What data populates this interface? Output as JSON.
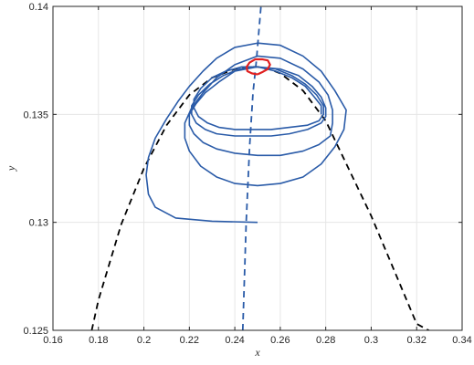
{
  "chart_data": {
    "type": "line",
    "title": "",
    "xlabel": "x",
    "ylabel": "y",
    "xlim": [
      0.16,
      0.34
    ],
    "ylim": [
      0.125,
      0.14
    ],
    "xticks": [
      0.16,
      0.18,
      0.2,
      0.22,
      0.24,
      0.26,
      0.28,
      0.3,
      0.32,
      0.34
    ],
    "yticks": [
      0.125,
      0.13,
      0.135,
      0.14
    ],
    "xtick_labels": [
      "0.16",
      "0.18",
      "0.2",
      "0.22",
      "0.24",
      "0.26",
      "0.28",
      "0.3",
      "0.32",
      "0.34"
    ],
    "ytick_labels": [
      "0.125",
      "0.13",
      "0.135",
      "0.14"
    ],
    "grid": true,
    "colors": {
      "trajectory": "#2a5ba8",
      "nullcline_y": "#2a5ba8",
      "nullcline_x": "#000000",
      "limit_cycle": "#e02020",
      "grid": "#e6e6e6",
      "axes": "#262626"
    },
    "series": [
      {
        "style": "dashed-black",
        "x": [
          0.176,
          0.18,
          0.19,
          0.2,
          0.21,
          0.22,
          0.23,
          0.24,
          0.245,
          0.25,
          0.255,
          0.26,
          0.27,
          0.28,
          0.29,
          0.3,
          0.31,
          0.32,
          0.334
        ],
        "y": [
          0.1245,
          0.1264,
          0.1299,
          0.1325,
          0.1345,
          0.1359,
          0.1367,
          0.1371,
          0.1372,
          0.1372,
          0.1371,
          0.1369,
          0.1361,
          0.1347,
          0.1325,
          0.1303,
          0.1278,
          0.1253,
          0.1245
        ]
      },
      {
        "style": "dashed-blue",
        "x": [
          0.2435,
          0.245,
          0.2465,
          0.248,
          0.2495,
          0.2515
        ],
        "y": [
          0.125,
          0.13,
          0.1335,
          0.136,
          0.1375,
          0.14
        ]
      },
      {
        "style": "solid-blue",
        "x": [
          0.25,
          0.23,
          0.214,
          0.205,
          0.202,
          0.201,
          0.202,
          0.205,
          0.21,
          0.215,
          0.22,
          0.226,
          0.232,
          0.24,
          0.25,
          0.26,
          0.27,
          0.278,
          0.284,
          0.289,
          0.288,
          0.284,
          0.278,
          0.27,
          0.26,
          0.25,
          0.24,
          0.232,
          0.225,
          0.22,
          0.218,
          0.218,
          0.221,
          0.226,
          0.232,
          0.24,
          0.25,
          0.26,
          0.27,
          0.277,
          0.281,
          0.283,
          0.283,
          0.282,
          0.277,
          0.27,
          0.26,
          0.25,
          0.24,
          0.232,
          0.226,
          0.222,
          0.22,
          0.22,
          0.223,
          0.227,
          0.233,
          0.24,
          0.25,
          0.26,
          0.268,
          0.274,
          0.278,
          0.28,
          0.28,
          0.278,
          0.272,
          0.264,
          0.256,
          0.248,
          0.24,
          0.232,
          0.227,
          0.223,
          0.221,
          0.221,
          0.224,
          0.229,
          0.235,
          0.242,
          0.25,
          0.258,
          0.265,
          0.271,
          0.276,
          0.279,
          0.279,
          0.277,
          0.272,
          0.264,
          0.256,
          0.248,
          0.24,
          0.233,
          0.228,
          0.224,
          0.222,
          0.222,
          0.225,
          0.23,
          0.236,
          0.243,
          0.25,
          0.258,
          0.265,
          0.271,
          0.275,
          0.278,
          0.278
        ],
        "y": [
          0.13,
          0.13005,
          0.1302,
          0.1307,
          0.1313,
          0.1322,
          0.133,
          0.1339,
          0.1348,
          0.1356,
          0.1363,
          0.137,
          0.1376,
          0.1381,
          0.1383,
          0.1382,
          0.1377,
          0.137,
          0.1361,
          0.1352,
          0.1343,
          0.1335,
          0.1327,
          0.1321,
          0.1318,
          0.1317,
          0.1318,
          0.1321,
          0.1326,
          0.1333,
          0.1339,
          0.1346,
          0.1353,
          0.136,
          0.1367,
          0.1373,
          0.1377,
          0.1376,
          0.1371,
          0.1365,
          0.1359,
          0.1352,
          0.1346,
          0.134,
          0.1336,
          0.1333,
          0.1331,
          0.1331,
          0.1332,
          0.1334,
          0.1337,
          0.1341,
          0.1345,
          0.135,
          0.1355,
          0.136,
          0.1365,
          0.137,
          0.1372,
          0.1371,
          0.1368,
          0.1363,
          0.1358,
          0.1353,
          0.1349,
          0.1346,
          0.1343,
          0.1341,
          0.134,
          0.134,
          0.134,
          0.1341,
          0.1343,
          0.1346,
          0.135,
          0.1354,
          0.1359,
          0.1364,
          0.1368,
          0.1371,
          0.1372,
          0.1371,
          0.1368,
          0.1364,
          0.1359,
          0.1354,
          0.135,
          0.1347,
          0.1345,
          0.1344,
          0.1343,
          0.1343,
          0.1343,
          0.1344,
          0.1346,
          0.1349,
          0.1353,
          0.1357,
          0.1362,
          0.1367,
          0.137,
          0.1372,
          0.1372,
          0.137,
          0.1367,
          0.1363,
          0.1358,
          0.1354,
          0.135
        ]
      },
      {
        "style": "solid-red",
        "x": [
          0.25,
          0.2475,
          0.2455,
          0.2452,
          0.2465,
          0.249,
          0.252,
          0.2545,
          0.2555,
          0.2545,
          0.252,
          0.25
        ],
        "y": [
          0.13685,
          0.1369,
          0.137,
          0.1372,
          0.1374,
          0.13755,
          0.13755,
          0.1375,
          0.1373,
          0.1371,
          0.13695,
          0.13685
        ]
      }
    ]
  }
}
